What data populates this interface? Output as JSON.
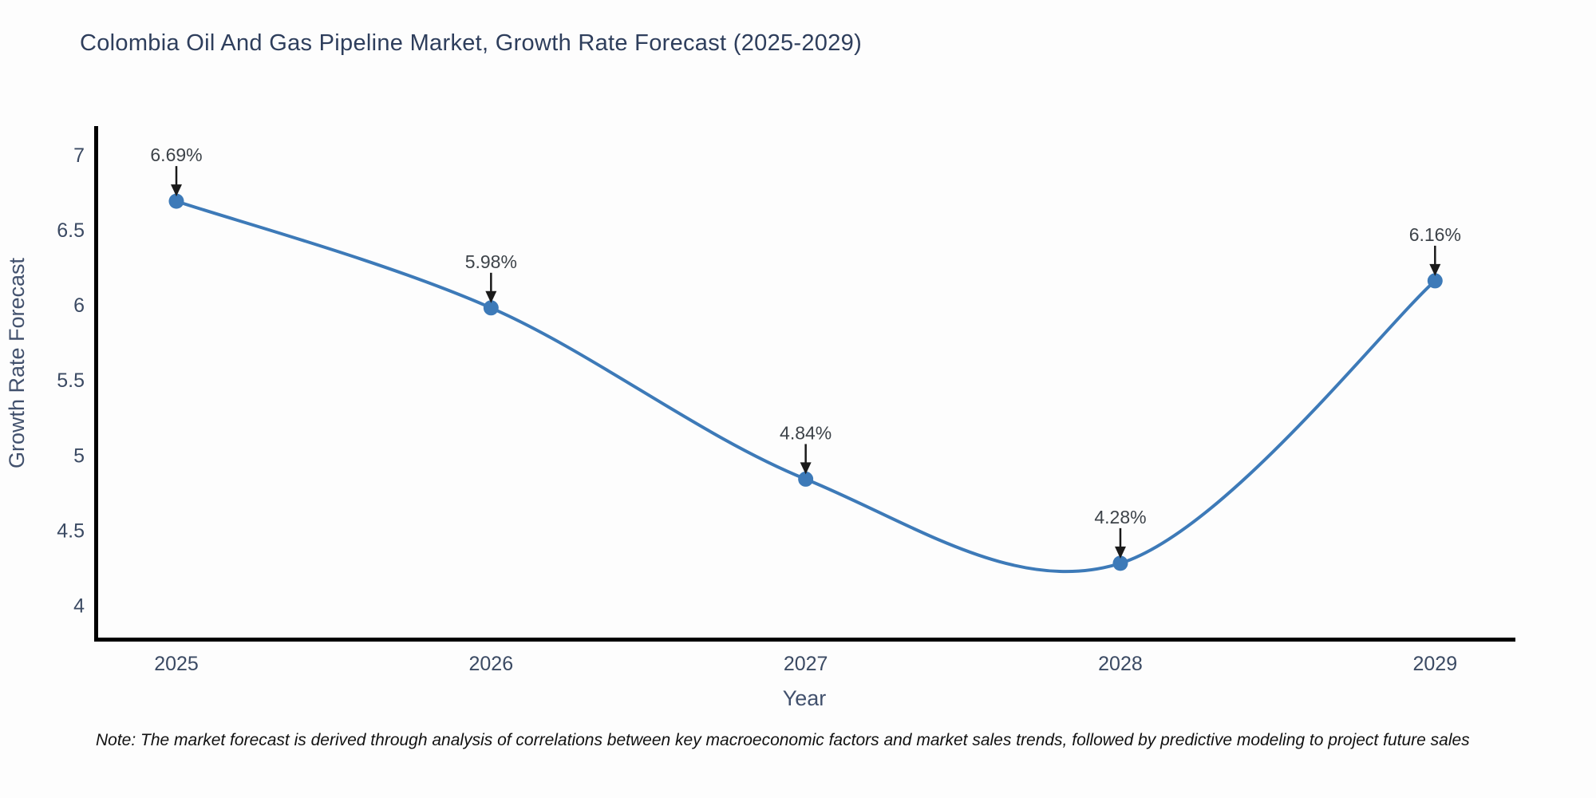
{
  "title": "Colombia Oil And Gas Pipeline Market, Growth Rate Forecast (2025-2029)",
  "note": "Note: The market forecast is derived through analysis of correlations between key macroeconomic factors and market sales trends, followed by predictive modeling to project future sales",
  "chart_data": {
    "type": "line",
    "line_shape": "spline",
    "grid": false,
    "legend": "none",
    "x": [
      2025,
      2026,
      2027,
      2028,
      2029
    ],
    "values": [
      6.69,
      5.98,
      4.84,
      4.28,
      6.16
    ],
    "point_labels": [
      "6.69%",
      "5.98%",
      "4.84%",
      "4.28%",
      "6.16%"
    ],
    "xlabel": "Year",
    "ylabel": "Growth Rate Forecast",
    "yticks": [
      4,
      4.5,
      5,
      5.5,
      6,
      6.5,
      7
    ],
    "ylim": [
      3.78,
      7.19
    ],
    "annotation_style": "down-arrow-to-point",
    "colors": {
      "line": "#3d7ab8",
      "marker": "#3d7ab8",
      "axis": "#000000",
      "title_text": "#2e3e5c",
      "tick_text": "#3b4a63",
      "axis_label_text": "#42516d",
      "annotation_text": "#3d4349",
      "arrow": "#1a1a1a",
      "background": "#fdfdfd"
    }
  }
}
